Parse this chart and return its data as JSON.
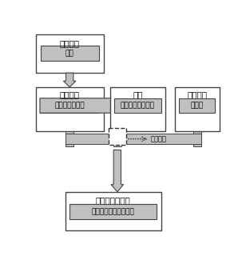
{
  "box_fill": "white",
  "arrow_fill": "#c0c0c0",
  "inner_box_fill": "#c0c0c0",
  "box_edge": "#444444",
  "font_size_main": 7.5,
  "font_size_inner": 6.5,
  "box1_label": "危険因子",
  "box1_inner": "原因",
  "box2_label": "身体機構",
  "box2_inner": "インペアメント",
  "box3_label": "能力",
  "box3_inner": "ディスアビリティ",
  "box4_label": "環境因子",
  "box4_inner": "障害物",
  "box5_label": "生活・社会活動",
  "box5_inner": "ハンディキャップ状況",
  "sogosakuyo": "相互作用"
}
